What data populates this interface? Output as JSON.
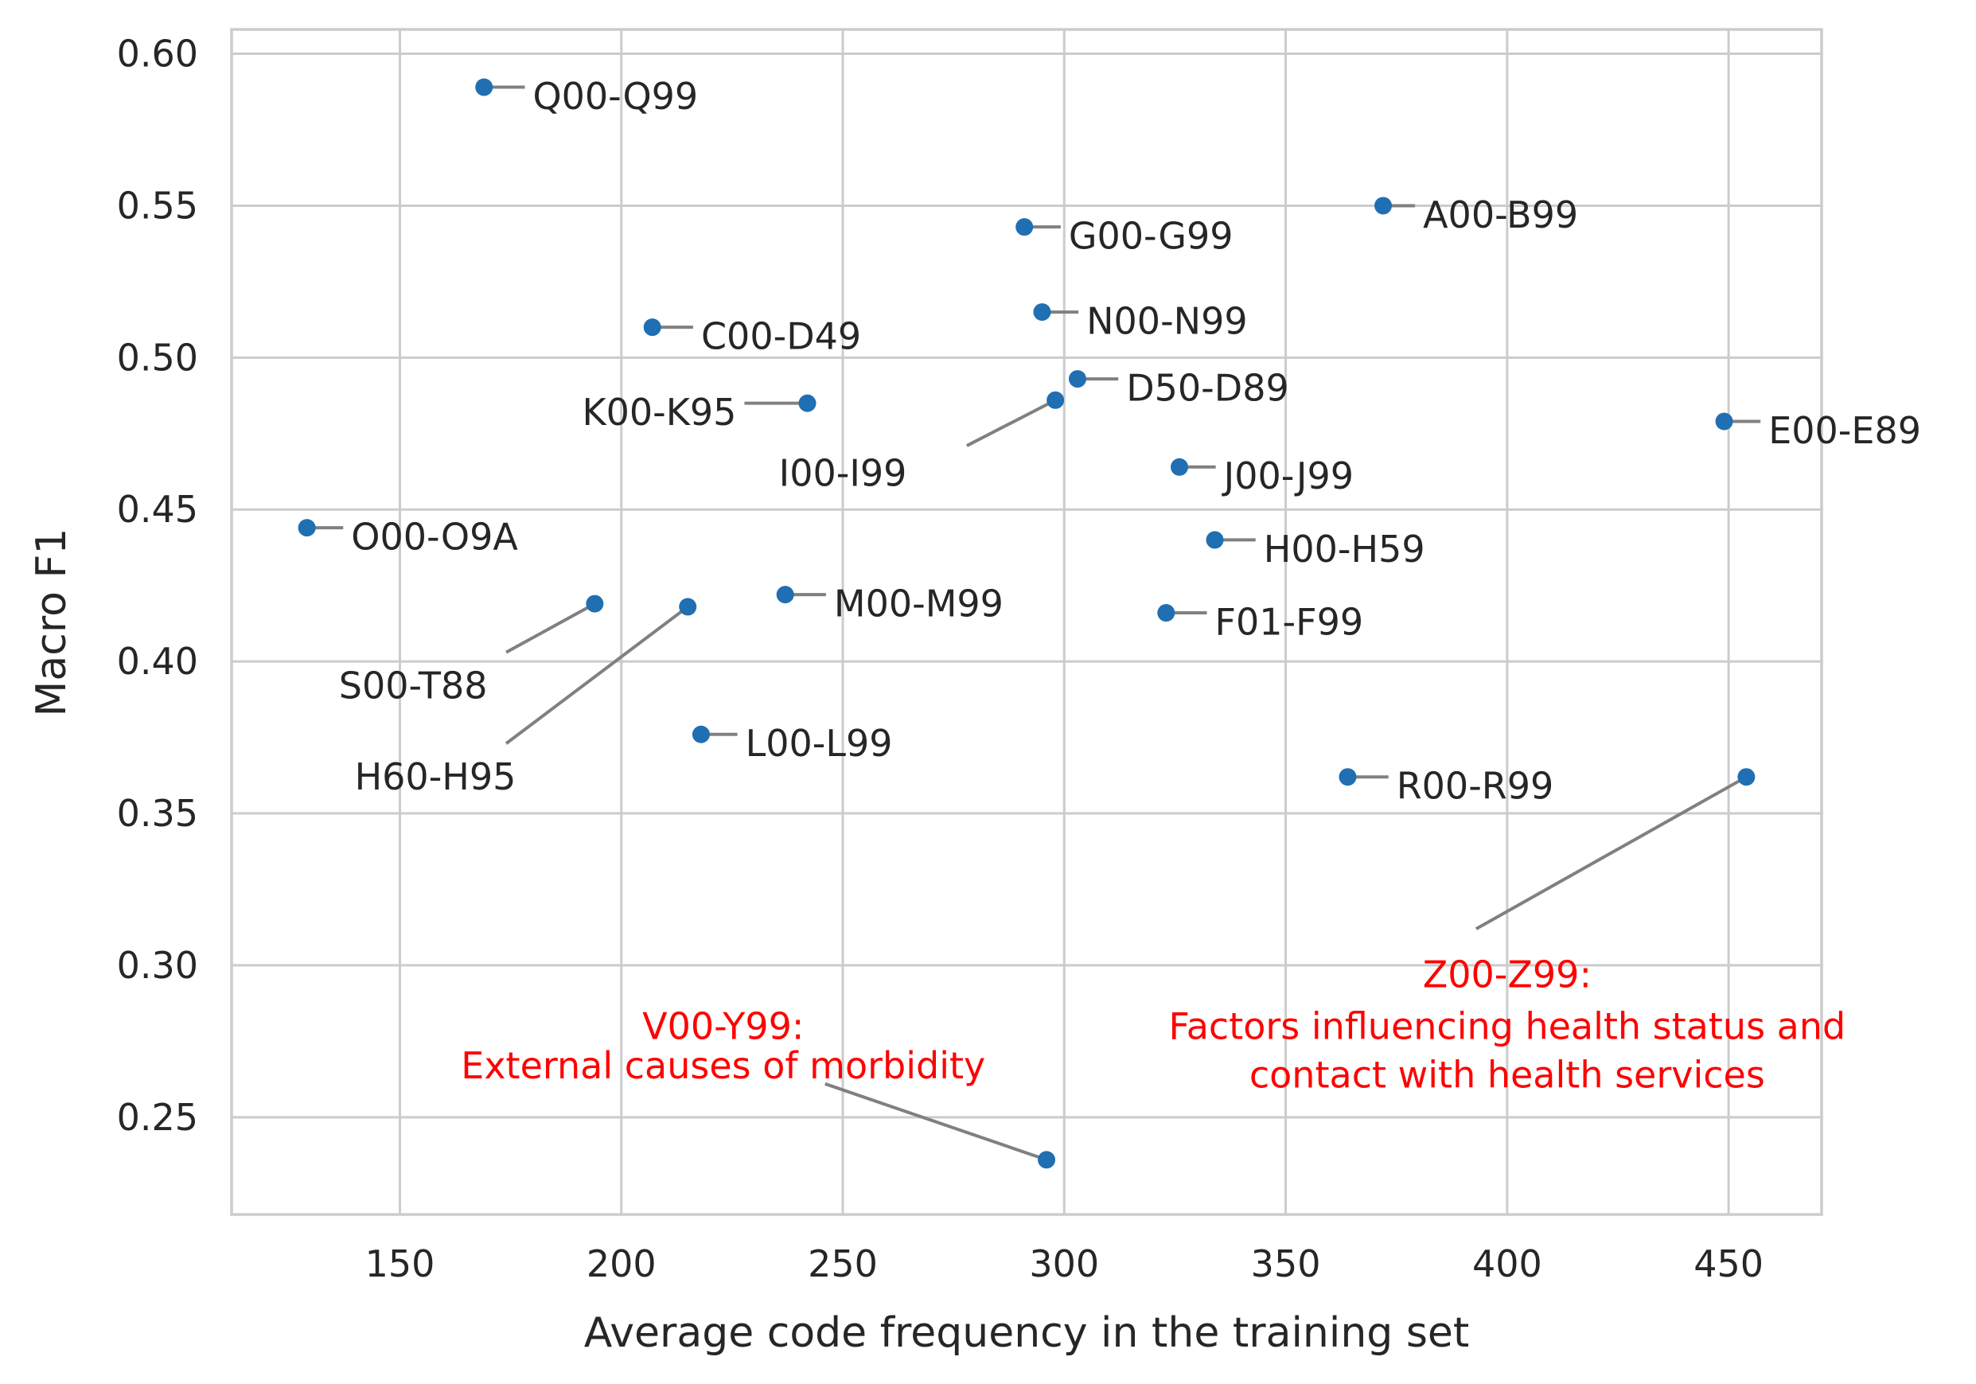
{
  "chart_data": {
    "type": "scatter",
    "xlabel": "Average code frequency in the training set",
    "ylabel": "Macro F1",
    "xlim": [
      112,
      471
    ],
    "ylim": [
      0.218,
      0.608
    ],
    "xticks": [
      150,
      200,
      250,
      300,
      350,
      400,
      450
    ],
    "yticks": [
      0.25,
      0.3,
      0.35,
      0.4,
      0.45,
      0.5,
      0.55,
      0.6
    ],
    "xtick_labels": [
      "150",
      "200",
      "250",
      "300",
      "350",
      "400",
      "450"
    ],
    "ytick_labels": [
      "0.25",
      "0.30",
      "0.35",
      "0.40",
      "0.45",
      "0.50",
      "0.55",
      "0.60"
    ],
    "grid": true,
    "point_color": "#1f6fb2",
    "annotation_color": "#ff0000",
    "points": [
      {
        "label": "Q00-Q99",
        "x": 169,
        "y": 0.589,
        "lx": 180,
        "ly": 0.586
      },
      {
        "label": "A00-B99",
        "x": 372,
        "y": 0.55,
        "lx": 381,
        "ly": 0.547
      },
      {
        "label": "G00-G99",
        "x": 291,
        "y": 0.543,
        "lx": 301,
        "ly": 0.54
      },
      {
        "label": "N00-N99",
        "x": 295,
        "y": 0.515,
        "lx": 305,
        "ly": 0.512
      },
      {
        "label": "C00-D49",
        "x": 207,
        "y": 0.51,
        "lx": 218,
        "ly": 0.507
      },
      {
        "label": "D50-D89",
        "x": 303,
        "y": 0.493,
        "lx": 314,
        "ly": 0.49
      },
      {
        "label": "K00-K95",
        "x": 242,
        "y": 0.485,
        "lx": 226,
        "ly": 0.482,
        "anchor": "end"
      },
      {
        "label": "I00-I99",
        "x": 298,
        "y": 0.486,
        "lx": 250,
        "ly": 0.462,
        "anchor": "middle",
        "lineTo": [
          278,
          0.471
        ]
      },
      {
        "label": "E00-E89",
        "x": 449,
        "y": 0.479,
        "lx": 459,
        "ly": 0.476
      },
      {
        "label": "J00-J99",
        "x": 326,
        "y": 0.464,
        "lx": 336,
        "ly": 0.461
      },
      {
        "label": "O00-O9A",
        "x": 129,
        "y": 0.444,
        "lx": 139,
        "ly": 0.441
      },
      {
        "label": "H00-H59",
        "x": 334,
        "y": 0.44,
        "lx": 345,
        "ly": 0.437
      },
      {
        "label": "M00-M99",
        "x": 237,
        "y": 0.422,
        "lx": 248,
        "ly": 0.419
      },
      {
        "label": "S00-T88",
        "x": 194,
        "y": 0.419,
        "lx": 153,
        "ly": 0.392,
        "anchor": "middle",
        "lineTo": [
          174,
          0.403
        ]
      },
      {
        "label": "H60-H95",
        "x": 215,
        "y": 0.418,
        "lx": 158,
        "ly": 0.362,
        "anchor": "middle",
        "lineTo": [
          174,
          0.373
        ]
      },
      {
        "label": "F01-F99",
        "x": 323,
        "y": 0.416,
        "lx": 334,
        "ly": 0.413
      },
      {
        "label": "L00-L99",
        "x": 218,
        "y": 0.376,
        "lx": 228,
        "ly": 0.373
      },
      {
        "label": "R00-R99",
        "x": 364,
        "y": 0.362,
        "lx": 375,
        "ly": 0.359
      },
      {
        "label": "Z00-Z99:",
        "x": 454,
        "y": 0.362,
        "lx": 400,
        "ly": 0.297,
        "anchor": "middle",
        "highlight": true,
        "lineTo": [
          393,
          0.312
        ]
      },
      {
        "label": "V00-Y99:",
        "x": 296,
        "y": 0.236,
        "lx": 223,
        "ly": 0.28,
        "anchor": "middle",
        "highlight": true,
        "lineTo": [
          246,
          0.261
        ]
      }
    ],
    "annotations": [
      {
        "text": "Factors influencing health status and",
        "x": 400,
        "y": 0.28,
        "anchor": "middle"
      },
      {
        "text": "contact with health services",
        "x": 400,
        "y": 0.264,
        "anchor": "middle"
      },
      {
        "text": "External causes of morbidity",
        "x": 223,
        "y": 0.267,
        "anchor": "middle"
      }
    ]
  }
}
